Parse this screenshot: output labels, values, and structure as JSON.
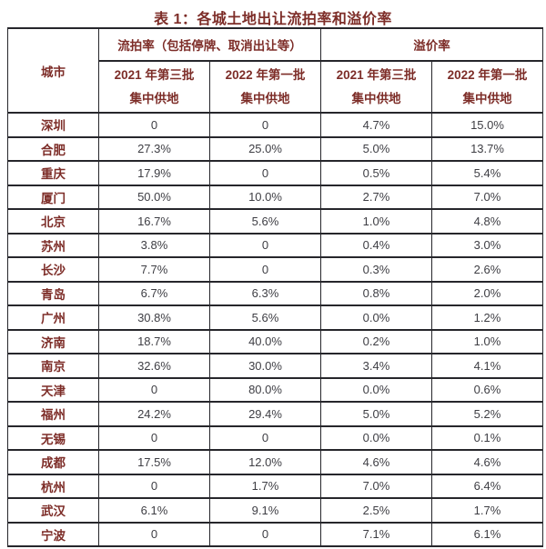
{
  "title": "表 1：各城土地出让流拍率和溢价率",
  "colors": {
    "header_text": "#7d2d28",
    "value_text": "#3e3e44",
    "border": "#26262b",
    "background": "#ffffff"
  },
  "table": {
    "corner_header": "城市",
    "group_headers": [
      "流拍率（包括停牌、取消出让等）",
      "溢价率"
    ],
    "sub_headers": [
      {
        "line1": "2021 年第三批",
        "line2": "集中供地"
      },
      {
        "line1": "2022 年第一批",
        "line2": "集中供地"
      },
      {
        "line1": "2021 年第三批",
        "line2": "集中供地"
      },
      {
        "line1": "2022 年第一批",
        "line2": "集中供地"
      }
    ],
    "rows": [
      {
        "city": "深圳",
        "values": [
          "0",
          "0",
          "4.7%",
          "15.0%"
        ]
      },
      {
        "city": "合肥",
        "values": [
          "27.3%",
          "25.0%",
          "5.0%",
          "13.7%"
        ]
      },
      {
        "city": "重庆",
        "values": [
          "17.9%",
          "0",
          "0.5%",
          "5.4%"
        ]
      },
      {
        "city": "厦门",
        "values": [
          "50.0%",
          "10.0%",
          "2.7%",
          "7.0%"
        ]
      },
      {
        "city": "北京",
        "values": [
          "16.7%",
          "5.6%",
          "1.0%",
          "4.8%"
        ]
      },
      {
        "city": "苏州",
        "values": [
          "3.8%",
          "0",
          "0.4%",
          "3.0%"
        ]
      },
      {
        "city": "长沙",
        "values": [
          "7.7%",
          "0",
          "0.3%",
          "2.6%"
        ]
      },
      {
        "city": "青岛",
        "values": [
          "6.7%",
          "6.3%",
          "0.8%",
          "2.0%"
        ]
      },
      {
        "city": "广州",
        "values": [
          "30.8%",
          "5.6%",
          "0.0%",
          "1.2%"
        ]
      },
      {
        "city": "济南",
        "values": [
          "18.7%",
          "40.0%",
          "0.2%",
          "1.0%"
        ]
      },
      {
        "city": "南京",
        "values": [
          "32.6%",
          "30.0%",
          "3.4%",
          "4.1%"
        ]
      },
      {
        "city": "天津",
        "values": [
          "0",
          "80.0%",
          "0.0%",
          "0.6%"
        ]
      },
      {
        "city": "福州",
        "values": [
          "24.2%",
          "29.4%",
          "5.0%",
          "5.2%"
        ]
      },
      {
        "city": "无锡",
        "values": [
          "0",
          "0",
          "0.0%",
          "0.1%"
        ]
      },
      {
        "city": "成都",
        "values": [
          "17.5%",
          "12.0%",
          "4.6%",
          "4.6%"
        ]
      },
      {
        "city": "杭州",
        "values": [
          "0",
          "1.7%",
          "7.0%",
          "6.4%"
        ]
      },
      {
        "city": "武汉",
        "values": [
          "6.1%",
          "9.1%",
          "2.5%",
          "1.7%"
        ]
      },
      {
        "city": "宁波",
        "values": [
          "0",
          "0",
          "7.1%",
          "6.1%"
        ]
      }
    ]
  }
}
